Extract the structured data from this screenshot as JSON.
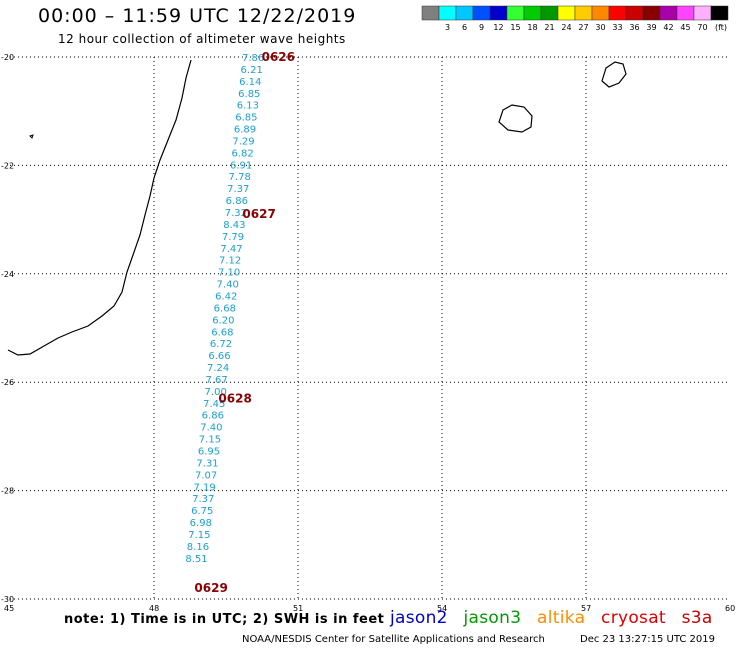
{
  "title": "00:00 – 11:59 UTC 12/22/2019",
  "subtitle": "12 hour collection of altimeter wave heights",
  "note": "note:  1) Time is in UTC;  2) SWH is in feet",
  "footer": {
    "credit": "NOAA/NESDIS Center for Satellite Applications and Research",
    "timestamp": "Dec 23 13:27:15 UTC 2019"
  },
  "satellites": [
    {
      "name": "jason2",
      "color": "#0000cc"
    },
    {
      "name": "jason3",
      "color": "#009900"
    },
    {
      "name": "altika",
      "color": "#ff8c00"
    },
    {
      "name": "cryosat",
      "color": "#dd0000"
    },
    {
      "name": "s3a",
      "color": "#cc0000"
    }
  ],
  "color_scale": {
    "unit": "(ft)",
    "levels": [
      {
        "label": "",
        "color": "#808080"
      },
      {
        "label": "3",
        "color": "#00ffff"
      },
      {
        "label": "6",
        "color": "#00c8ff"
      },
      {
        "label": "9",
        "color": "#0050ff"
      },
      {
        "label": "12",
        "color": "#0000cc"
      },
      {
        "label": "15",
        "color": "#33ff33"
      },
      {
        "label": "18",
        "color": "#00cc00"
      },
      {
        "label": "21",
        "color": "#009900"
      },
      {
        "label": "24",
        "color": "#ffff00"
      },
      {
        "label": "27",
        "color": "#ffcc00"
      },
      {
        "label": "30",
        "color": "#ff8800"
      },
      {
        "label": "33",
        "color": "#ff0000"
      },
      {
        "label": "36",
        "color": "#cc0000"
      },
      {
        "label": "39",
        "color": "#880000"
      },
      {
        "label": "42",
        "color": "#aa00aa"
      },
      {
        "label": "45",
        "color": "#ff44ff"
      },
      {
        "label": "70",
        "color": "#ffb0ff"
      },
      {
        "label": "",
        "color": "#000000"
      }
    ]
  },
  "chart_data": {
    "type": "scatter",
    "xlim": [
      45,
      60
    ],
    "ylim": [
      -30,
      -20
    ],
    "x_ticks": [
      45,
      48,
      51,
      54,
      57,
      60
    ],
    "y_ticks": [
      -20,
      -22,
      -24,
      -26,
      -28,
      -30
    ],
    "x_tick_labels": [
      "45",
      "48",
      "51",
      "54",
      "57",
      "60"
    ],
    "y_tick_labels": [
      "-20",
      "-22",
      "-24",
      "-26",
      "-28",
      "-30"
    ],
    "grid": true,
    "swh_track": [
      {
        "lon": 50.0,
        "lat": -20.0,
        "swh": "7.86"
      },
      {
        "lon": 49.97,
        "lat": -20.22,
        "swh": "6.21"
      },
      {
        "lon": 49.94,
        "lat": -20.44,
        "swh": "6.14"
      },
      {
        "lon": 49.92,
        "lat": -20.66,
        "swh": "6.85"
      },
      {
        "lon": 49.89,
        "lat": -20.88,
        "swh": "6.13"
      },
      {
        "lon": 49.86,
        "lat": -21.1,
        "swh": "6.85"
      },
      {
        "lon": 49.83,
        "lat": -21.32,
        "swh": "6.89"
      },
      {
        "lon": 49.8,
        "lat": -21.54,
        "swh": "7.29"
      },
      {
        "lon": 49.78,
        "lat": -21.76,
        "swh": "6.82"
      },
      {
        "lon": 49.75,
        "lat": -21.98,
        "swh": "6.91"
      },
      {
        "lon": 49.72,
        "lat": -22.2,
        "swh": "7.78"
      },
      {
        "lon": 49.69,
        "lat": -22.42,
        "swh": "7.37"
      },
      {
        "lon": 49.66,
        "lat": -22.64,
        "swh": "6.86"
      },
      {
        "lon": 49.64,
        "lat": -22.86,
        "swh": "7.32"
      },
      {
        "lon": 49.61,
        "lat": -23.08,
        "swh": "8.43"
      },
      {
        "lon": 49.58,
        "lat": -23.3,
        "swh": "7.79"
      },
      {
        "lon": 49.55,
        "lat": -23.52,
        "swh": "7.47"
      },
      {
        "lon": 49.52,
        "lat": -23.74,
        "swh": "7.12"
      },
      {
        "lon": 49.5,
        "lat": -23.96,
        "swh": "7.10"
      },
      {
        "lon": 49.47,
        "lat": -24.18,
        "swh": "7.40"
      },
      {
        "lon": 49.44,
        "lat": -24.4,
        "swh": "6.42"
      },
      {
        "lon": 49.41,
        "lat": -24.62,
        "swh": "6.68"
      },
      {
        "lon": 49.38,
        "lat": -24.84,
        "swh": "6.20"
      },
      {
        "lon": 49.36,
        "lat": -25.06,
        "swh": "6.68"
      },
      {
        "lon": 49.33,
        "lat": -25.28,
        "swh": "6.72"
      },
      {
        "lon": 49.3,
        "lat": -25.5,
        "swh": "6.66"
      },
      {
        "lon": 49.27,
        "lat": -25.72,
        "swh": "7.24"
      },
      {
        "lon": 49.24,
        "lat": -25.94,
        "swh": "7.67"
      },
      {
        "lon": 49.22,
        "lat": -26.16,
        "swh": "7.00"
      },
      {
        "lon": 49.19,
        "lat": -26.38,
        "swh": "7.45"
      },
      {
        "lon": 49.16,
        "lat": -26.6,
        "swh": "6.86"
      },
      {
        "lon": 49.13,
        "lat": -26.82,
        "swh": "7.40"
      },
      {
        "lon": 49.1,
        "lat": -27.04,
        "swh": "7.15"
      },
      {
        "lon": 49.08,
        "lat": -27.26,
        "swh": "6.95"
      },
      {
        "lon": 49.05,
        "lat": -27.48,
        "swh": "7.31"
      },
      {
        "lon": 49.02,
        "lat": -27.7,
        "swh": "7.07"
      },
      {
        "lon": 48.99,
        "lat": -27.92,
        "swh": "7.19"
      },
      {
        "lon": 48.96,
        "lat": -28.14,
        "swh": "7.37"
      },
      {
        "lon": 48.94,
        "lat": -28.36,
        "swh": "6.75"
      },
      {
        "lon": 48.91,
        "lat": -28.58,
        "swh": "6.98"
      },
      {
        "lon": 48.88,
        "lat": -28.8,
        "swh": "7.15"
      },
      {
        "lon": 48.85,
        "lat": -29.02,
        "swh": "8.16"
      },
      {
        "lon": 48.82,
        "lat": -29.24,
        "swh": "8.51"
      }
    ],
    "time_markers": [
      {
        "lon": 50.2,
        "lat": -20.0,
        "label": "0626"
      },
      {
        "lon": 49.8,
        "lat": -22.9,
        "label": "0627"
      },
      {
        "lon": 49.3,
        "lat": -26.3,
        "label": "0628"
      },
      {
        "lon": 48.8,
        "lat": -29.8,
        "label": "0629"
      }
    ]
  }
}
